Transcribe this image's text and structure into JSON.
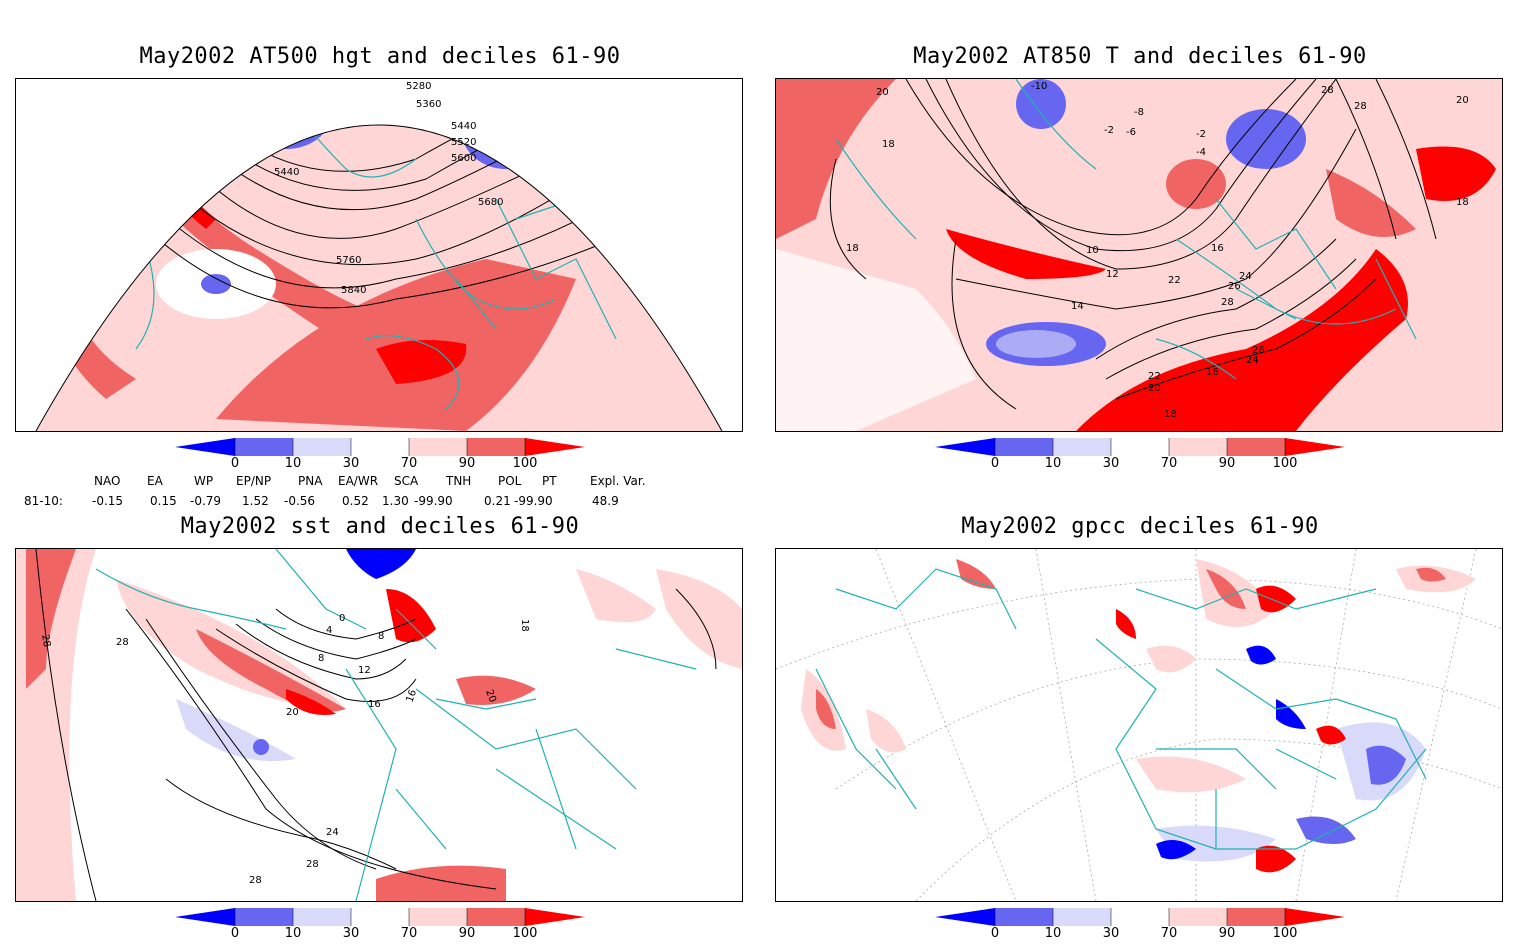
{
  "panels": [
    {
      "title": "May2002 AT500 hgt and deciles 61-90",
      "labels": [
        "5280",
        "5360",
        "5440",
        "5520",
        "5600",
        "5440",
        "5680",
        "5760",
        "5840"
      ]
    },
    {
      "title": "May2002 AT850 T and deciles 61-90",
      "labels": [
        "-10",
        "20",
        "18",
        "-8",
        "-6",
        "-2",
        "-2",
        "-4",
        "28",
        "28",
        "20",
        "18",
        "10",
        "12",
        "14",
        "16",
        "22",
        "24",
        "26",
        "28",
        "18",
        "16",
        "26",
        "24",
        "22",
        "20",
        "18"
      ]
    },
    {
      "title": "May2002 sst and deciles 61-90",
      "labels": [
        "28",
        "28",
        "0",
        "4",
        "8",
        "8",
        "12",
        "16",
        "20",
        "18",
        "20",
        "24",
        "28",
        "28",
        "16"
      ]
    },
    {
      "title": "May2002 gpcc deciles 61-90",
      "labels": []
    }
  ],
  "colorbar": {
    "ticks": [
      "0",
      "10",
      "30",
      "70",
      "90",
      "100"
    ],
    "colors": {
      "dark_blue": "#0000ff",
      "mid_blue": "#6666f0",
      "light_blue": "#d9d9fa",
      "white": "#ffffff",
      "light_red": "#ffd6d6",
      "mid_red": "#f06464",
      "dark_red": "#ff0000"
    }
  },
  "indices": {
    "row_label": "81-10:",
    "names": [
      "NAO",
      "EA",
      "WP",
      "EP/NP",
      "PNA",
      "EA/WR",
      "SCA",
      "TNH",
      "POL",
      "PT",
      "Expl. Var."
    ],
    "values": [
      "-0.15",
      "0.15",
      "-0.79",
      "1.52",
      "-0.56",
      "0.52",
      "1.30",
      "-99.90",
      "0.21",
      "-99.90",
      "48.9"
    ]
  },
  "colors": {
    "coastline": "#20b2b2",
    "contour": "#000000",
    "graticule": "#999999"
  }
}
